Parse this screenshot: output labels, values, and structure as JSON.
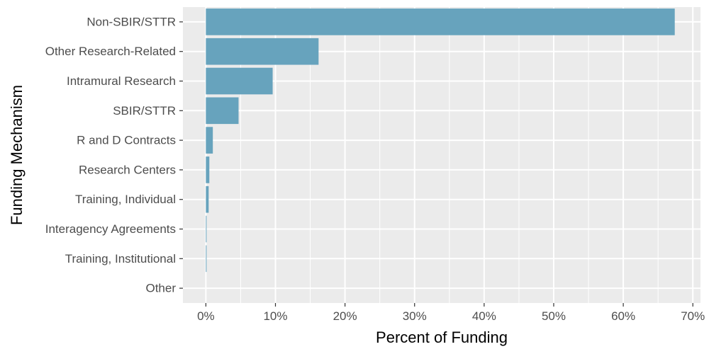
{
  "chart_data": {
    "type": "bar",
    "orientation": "horizontal",
    "title": "",
    "xlabel": "Percent of Funding",
    "ylabel": "Funding Mechanism",
    "categories": [
      "Non-SBIR/STTR",
      "Other Research-Related",
      "Intramural Research",
      "SBIR/STTR",
      "R and D Contracts",
      "Research Centers",
      "Training, Individual",
      "Interagency Agreements",
      "Training, Institutional",
      "Other"
    ],
    "values": [
      67.4,
      16.2,
      9.6,
      4.7,
      1.0,
      0.5,
      0.4,
      0.1,
      0.1,
      0.0
    ],
    "xlim": [
      -3.3,
      71.1
    ],
    "xticks": [
      0,
      10,
      20,
      30,
      40,
      50,
      60,
      70
    ],
    "xtick_labels": [
      "0%",
      "10%",
      "20%",
      "30%",
      "40%",
      "50%",
      "60%",
      "70%"
    ],
    "bar_color": "#67a3bd",
    "panel_background": "#ebebeb",
    "grid": true,
    "legend": "none"
  }
}
